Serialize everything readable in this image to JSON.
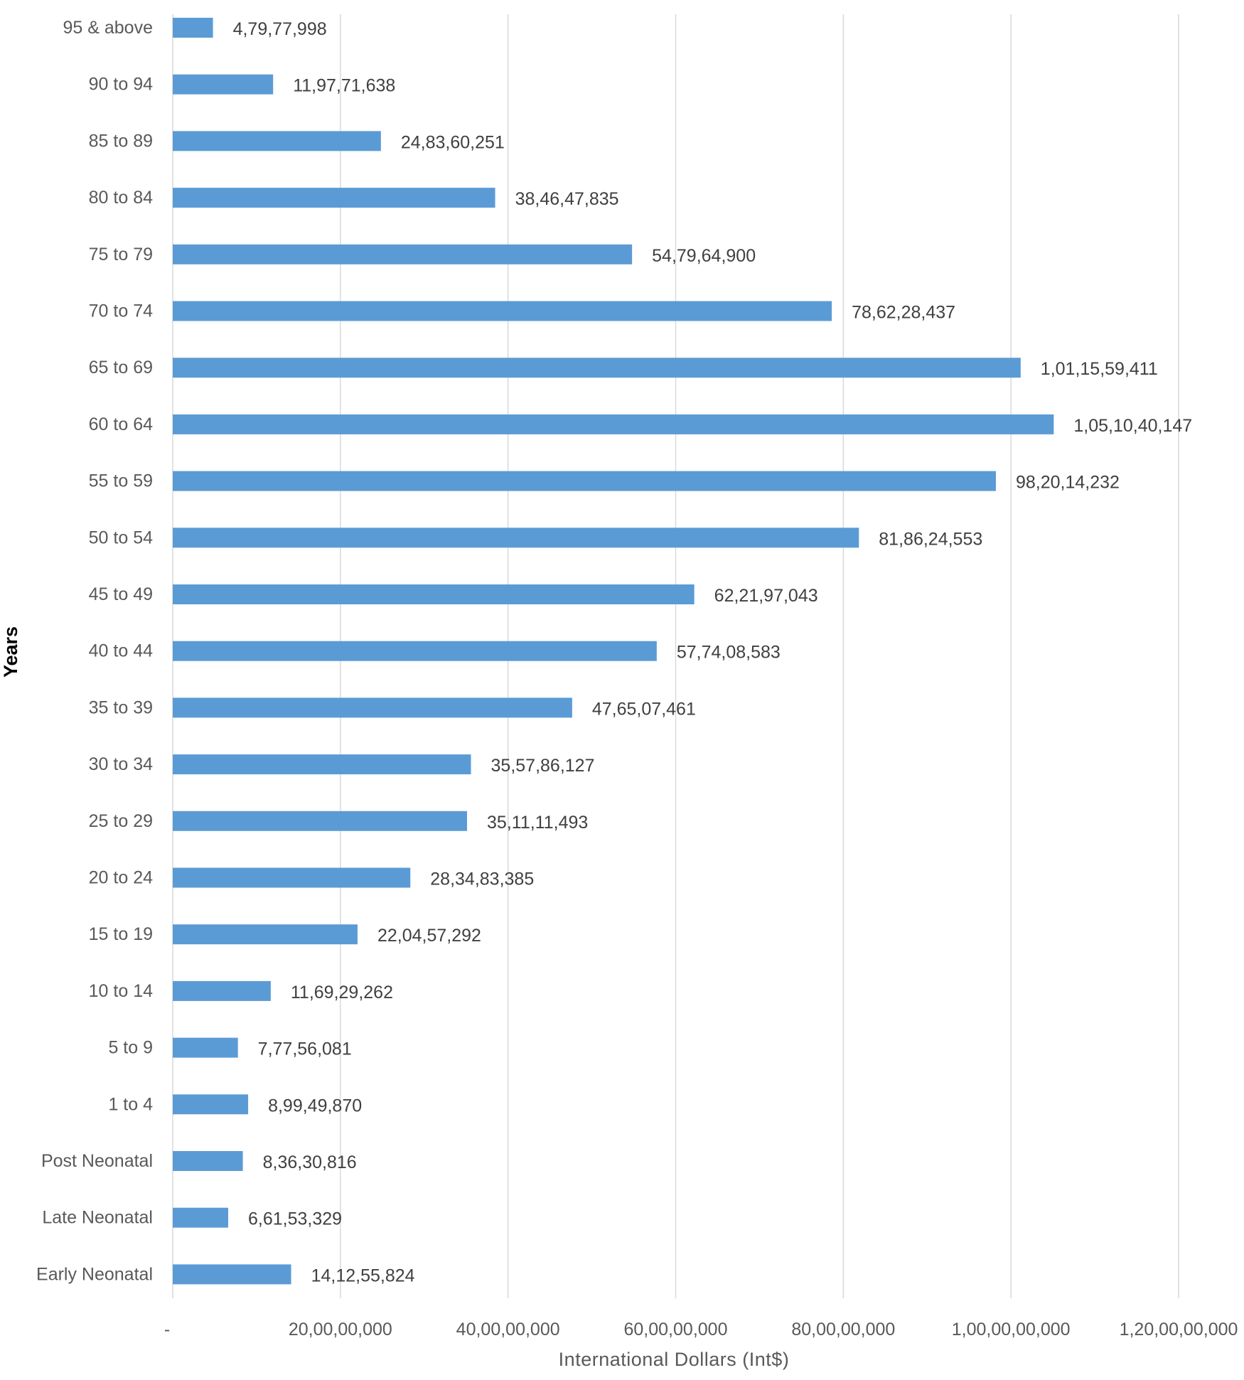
{
  "chart_data": {
    "type": "bar",
    "orientation": "horizontal",
    "xlabel": "International Dollars (Int$)",
    "ylabel": "Years",
    "xlim": [
      0,
      1200000000
    ],
    "grid": true,
    "colors": {
      "bar": "#5B9BD5",
      "grid": "#D9D9D9"
    },
    "x_ticks": [
      0,
      200000000,
      400000000,
      600000000,
      800000000,
      1000000000,
      1200000000
    ],
    "x_tick_labels": [
      "-",
      "20,00,00,000",
      "40,00,00,000",
      "60,00,00,000",
      "80,00,00,000",
      "1,00,00,00,000",
      "1,20,00,00,000"
    ],
    "categories": [
      "95 & above",
      "90 to 94",
      "85 to 89",
      "80 to 84",
      "75 to 79",
      "70 to 74",
      "65 to 69",
      "60 to 64",
      "55 to 59",
      "50 to 54",
      "45 to 49",
      "40 to 44",
      "35 to 39",
      "30 to 34",
      "25 to 29",
      "20 to 24",
      "15 to 19",
      "10 to 14",
      "5 to 9",
      "1 to 4",
      "Post Neonatal",
      "Late Neonatal",
      "Early Neonatal"
    ],
    "values": [
      47977998,
      119771638,
      248360251,
      384647835,
      547964900,
      786228437,
      1011559411,
      1051040147,
      982014232,
      818624553,
      622197043,
      577408583,
      476507461,
      355786127,
      351111493,
      283483385,
      220457292,
      116929262,
      77756081,
      89949870,
      83630816,
      66153329,
      141255824
    ],
    "value_labels": [
      "4,79,77,998",
      "11,97,71,638",
      "24,83,60,251",
      "38,46,47,835",
      "54,79,64,900",
      "78,62,28,437",
      "1,01,15,59,411",
      "1,05,10,40,147",
      "98,20,14,232",
      "81,86,24,553",
      "62,21,97,043",
      "57,74,08,583",
      "47,65,07,461",
      "35,57,86,127",
      "35,11,11,493",
      "28,34,83,385",
      "22,04,57,292",
      "11,69,29,262",
      "7,77,56,081",
      "8,99,49,870",
      "8,36,30,816",
      "6,61,53,329",
      "14,12,55,824"
    ]
  }
}
